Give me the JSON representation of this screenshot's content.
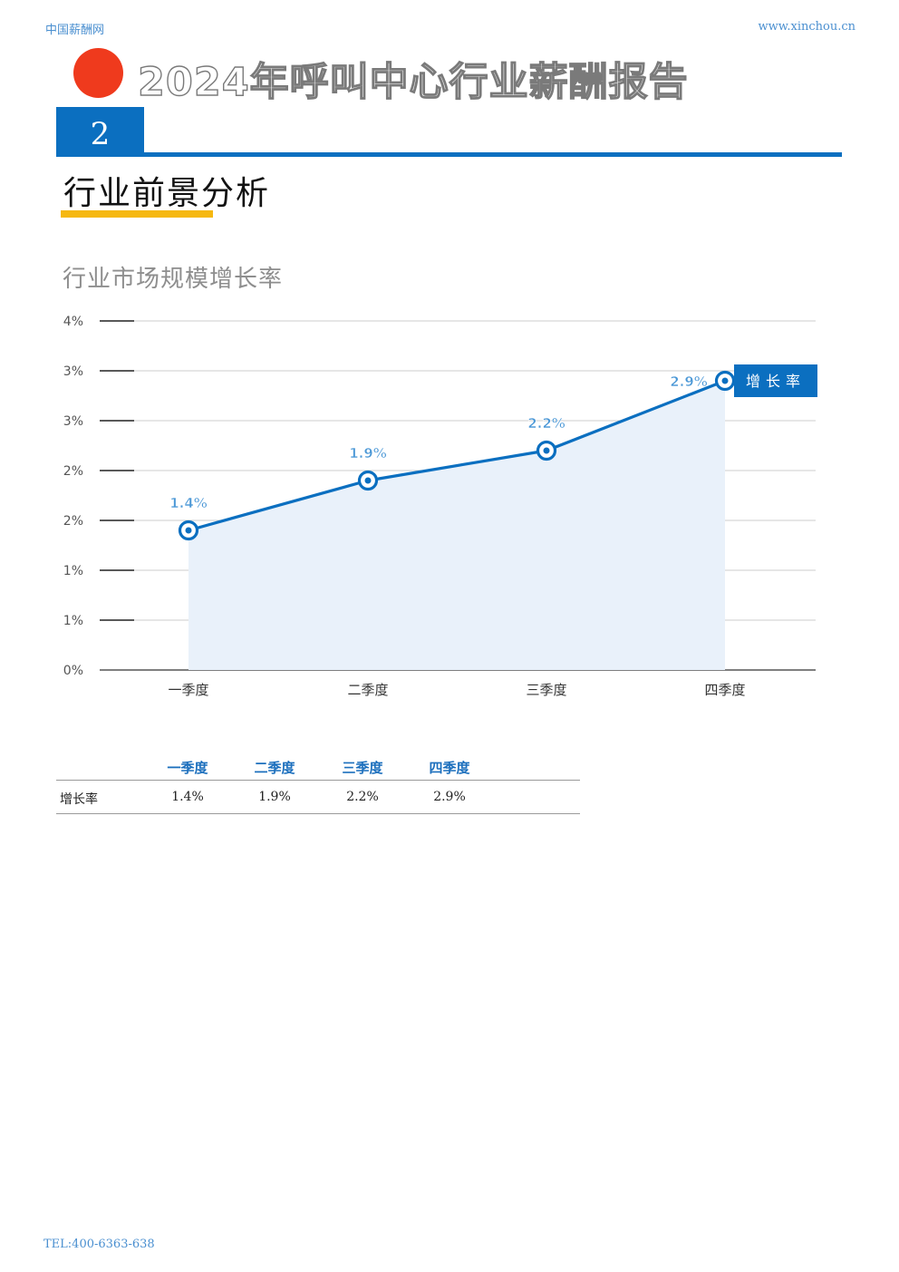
{
  "header": {
    "site_name": "中国薪酬网",
    "site_url": "www.xinchou.cn"
  },
  "report": {
    "title": "2024年呼叫中心行业薪酬报告",
    "section_number": "2",
    "section_title": "行业前景分析"
  },
  "chart_title": "行业市场规模增长率",
  "chart_data": {
    "type": "area",
    "title": "行业市场规模增长率",
    "categories": [
      "一季度",
      "二季度",
      "三季度",
      "四季度"
    ],
    "series": [
      {
        "name": "增长率",
        "values": [
          1.4,
          1.9,
          2.2,
          2.9
        ],
        "labels": [
          "1.4%",
          "1.9%",
          "2.2%",
          "2.9%"
        ]
      }
    ],
    "ytick_labels": [
      "0%",
      "1%",
      "1%",
      "2%",
      "2%",
      "3%",
      "3%",
      "4%"
    ],
    "ylim": [
      0,
      3.5
    ],
    "grid": true,
    "legend": "right",
    "colors": {
      "line": "#0b6fc0",
      "fill": "#e9f1fa",
      "grid": "#cccccc",
      "label": "#4a97d6"
    }
  },
  "table": {
    "headers": [
      "一季度",
      "二季度",
      "三季度",
      "四季度"
    ],
    "rows": [
      {
        "label": "增长率",
        "values": [
          "1.4%",
          "1.9%",
          "2.2%",
          "2.9%"
        ]
      }
    ]
  },
  "footer": {
    "tel": "TEL:400-6363-638"
  }
}
